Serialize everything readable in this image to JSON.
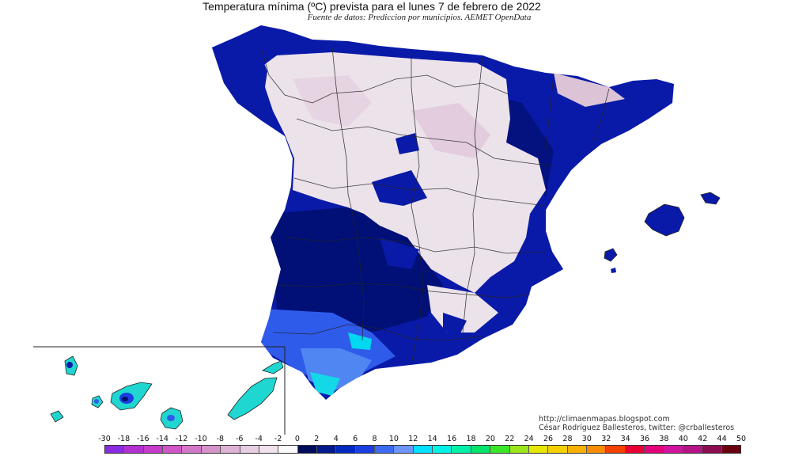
{
  "title": "Temperatura mínima (ºC) prevista para el lunes 7 de febrero de 2022",
  "subtitle": "Fuente de datos: Prediccion por municipios. AEMET OpenData",
  "credits": {
    "url": "http://climaenmapas.blogspot.com",
    "author": "César Rodríguez Ballesteros, twitter: @crballesteros"
  },
  "legend": {
    "labels": [
      "-30",
      "-18",
      "-16",
      "-14",
      "-12",
      "-10",
      "-8",
      "-6",
      "-4",
      "-2",
      "0",
      "2",
      "4",
      "6",
      "8",
      "10",
      "12",
      "14",
      "16",
      "18",
      "20",
      "22",
      "24",
      "26",
      "28",
      "30",
      "32",
      "34",
      "36",
      "38",
      "40",
      "42",
      "44",
      "50"
    ],
    "colors": [
      "#8a2be2",
      "#b030d0",
      "#c43cc8",
      "#cf56c8",
      "#d378c8",
      "#d593c9",
      "#ddb2d4",
      "#e6cde0",
      "#efe2ec",
      "#fafafa",
      "#000b5c",
      "#001a8c",
      "#0029c0",
      "#1c3ee0",
      "#3d6af0",
      "#6d95f5",
      "#00e0ff",
      "#00f2e6",
      "#00f0a8",
      "#00e56a",
      "#3be62a",
      "#9ae61a",
      "#e6e600",
      "#f4d000",
      "#f8b000",
      "#f88c00",
      "#f44000",
      "#e80034",
      "#e4007a",
      "#d0149e",
      "#b41486",
      "#8e0c50",
      "#6a0010"
    ]
  },
  "regions": {
    "peninsula": "peninsula",
    "balearic": "balearic-islands",
    "canary": "canary-islands"
  }
}
